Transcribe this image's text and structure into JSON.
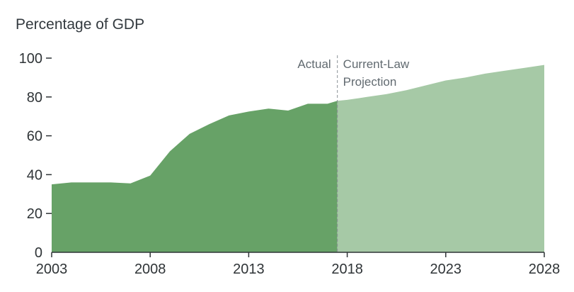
{
  "chart_data": {
    "type": "area",
    "y_unit_label": "Percentage of GDP",
    "x_ticks": [
      2003,
      2008,
      2013,
      2018,
      2023,
      2028
    ],
    "y_ticks": [
      0,
      20,
      40,
      60,
      80,
      100
    ],
    "xlim": [
      2003,
      2028
    ],
    "ylim": [
      0,
      100
    ],
    "grid": false,
    "series": [
      {
        "name": "Actual",
        "x": [
          2003,
          2004,
          2005,
          2006,
          2007,
          2008,
          2009,
          2010,
          2011,
          2012,
          2013,
          2014,
          2015,
          2016,
          2017,
          2017.5
        ],
        "values": [
          35,
          36,
          36,
          36,
          35.5,
          39.5,
          52,
          61,
          66,
          70.5,
          72.5,
          74,
          73,
          76.5,
          76.5,
          78
        ]
      },
      {
        "name": "Current-Law Projection",
        "x": [
          2017.5,
          2018,
          2019,
          2020,
          2021,
          2022,
          2023,
          2024,
          2025,
          2026,
          2027,
          2028
        ],
        "values": [
          78,
          78.5,
          80,
          81.5,
          83.5,
          86,
          88.5,
          90,
          92,
          93.5,
          95,
          96.5
        ]
      }
    ],
    "divider_x": 2017.5,
    "annotations": {
      "actual": "Actual",
      "projection_line1": "Current-Law",
      "projection_line2": "Projection"
    },
    "colors": {
      "actual": "#67a267",
      "projection": "#a6c9a6",
      "axis": "#2f3437",
      "divider": "#8a9096"
    }
  }
}
